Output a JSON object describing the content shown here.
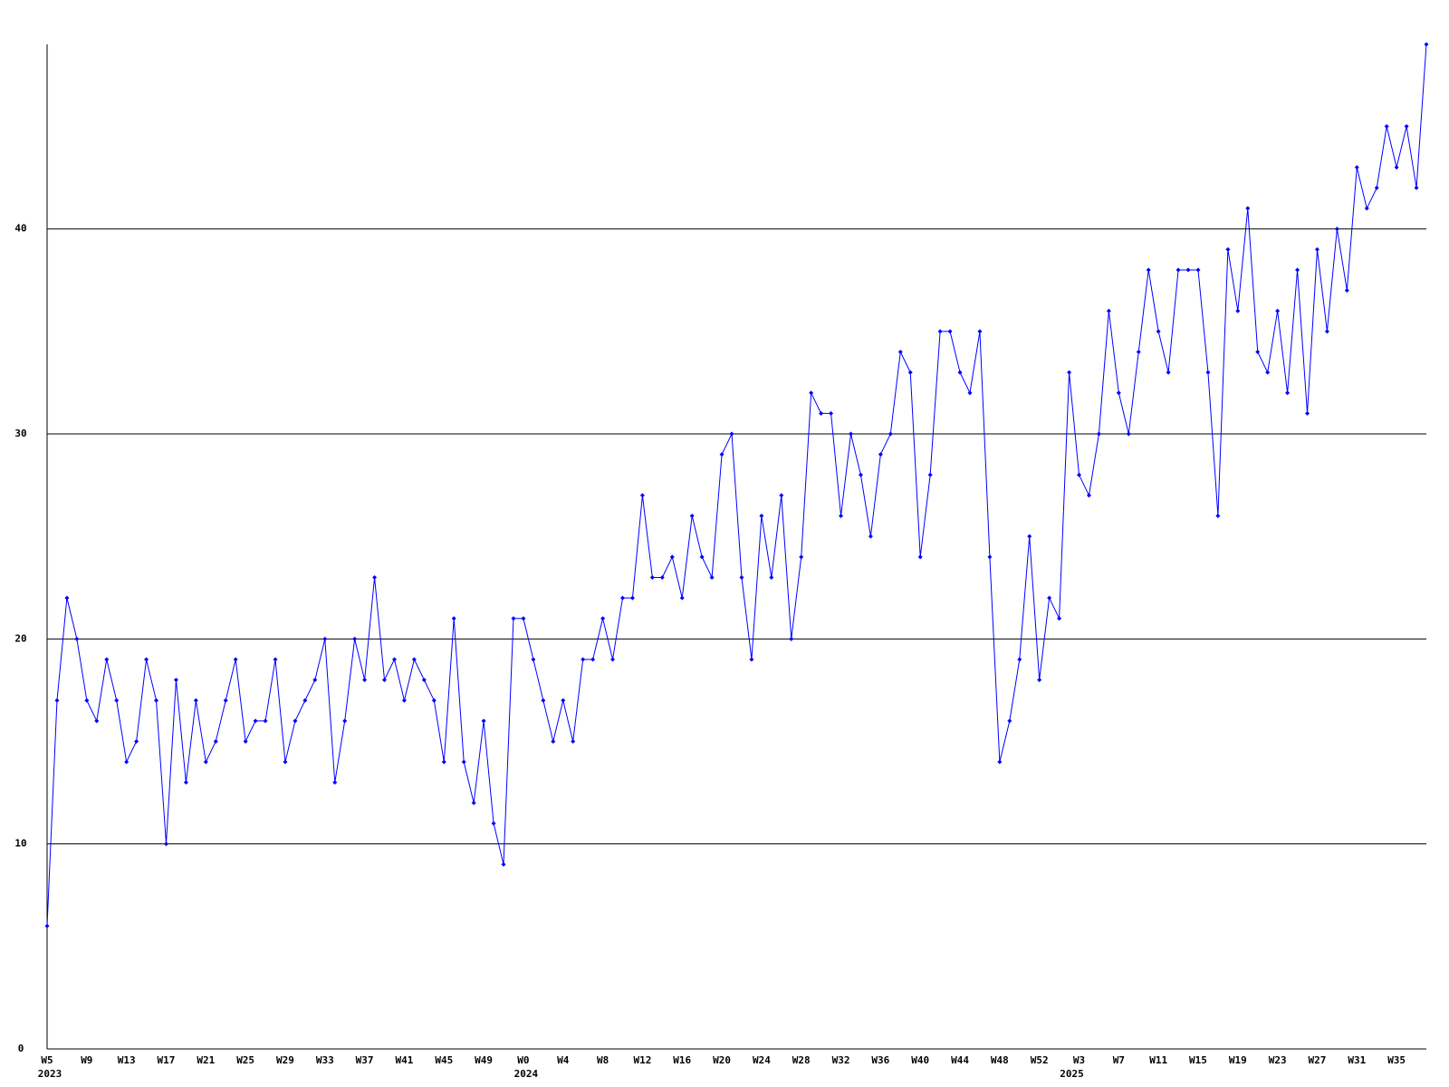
{
  "chart_data": {
    "type": "line",
    "color": "#0000ff",
    "grid": true,
    "ylim": [
      0,
      49
    ],
    "yticks": [
      0,
      10,
      20,
      30,
      40
    ],
    "categories": [
      "W5",
      null,
      null,
      null,
      "W9",
      null,
      null,
      null,
      "W13",
      null,
      null,
      null,
      "W17",
      null,
      null,
      null,
      "W21",
      null,
      null,
      null,
      "W25",
      null,
      null,
      null,
      "W29",
      null,
      null,
      null,
      "W33",
      null,
      null,
      null,
      "W37",
      null,
      null,
      null,
      "W41",
      null,
      null,
      null,
      "W45",
      null,
      null,
      null,
      "W49",
      null,
      null,
      null,
      "W0",
      null,
      null,
      null,
      "W4",
      null,
      null,
      null,
      "W8",
      null,
      null,
      null,
      "W12",
      null,
      null,
      null,
      "W16",
      null,
      null,
      null,
      "W20",
      null,
      null,
      null,
      "W24",
      null,
      null,
      null,
      "W28",
      null,
      null,
      null,
      "W32",
      null,
      null,
      null,
      "W36",
      null,
      null,
      null,
      "W40",
      null,
      null,
      null,
      "W44",
      null,
      null,
      null,
      "W48",
      null,
      null,
      null,
      "W52",
      null,
      null,
      null,
      "W3",
      null,
      null,
      null,
      "W7",
      null,
      null,
      null,
      "W11",
      null,
      null,
      null,
      "W15",
      null,
      null,
      null,
      "W19",
      null,
      null,
      null,
      "W23",
      null,
      null,
      null,
      "W27",
      null,
      null,
      null,
      "W31",
      null,
      null,
      null,
      "W35",
      null,
      null,
      null
    ],
    "category_years": [
      "2023",
      null,
      null,
      null,
      null,
      null,
      null,
      null,
      null,
      null,
      null,
      null,
      null,
      null,
      null,
      null,
      null,
      null,
      null,
      null,
      null,
      null,
      null,
      null,
      null,
      null,
      null,
      null,
      null,
      null,
      null,
      null,
      null,
      null,
      null,
      null,
      null,
      null,
      null,
      null,
      null,
      null,
      null,
      null,
      null,
      null,
      null,
      null,
      "2024",
      null,
      null,
      null,
      null,
      null,
      null,
      null,
      null,
      null,
      null,
      null,
      null,
      null,
      null,
      null,
      null,
      null,
      null,
      null,
      null,
      null,
      null,
      null,
      null,
      null,
      null,
      null,
      null,
      null,
      null,
      null,
      null,
      null,
      null,
      null,
      null,
      null,
      null,
      null,
      null,
      null,
      null,
      null,
      null,
      null,
      null,
      null,
      null,
      null,
      null,
      null,
      null,
      null,
      null,
      "2025",
      null,
      null,
      null,
      null,
      null,
      null,
      null,
      null,
      null,
      null,
      null,
      null,
      null,
      null,
      null,
      null,
      null,
      null,
      null,
      null,
      null,
      null,
      null,
      null,
      null,
      null,
      null,
      null,
      null,
      null,
      null,
      null,
      null,
      null,
      null,
      null,
      null,
      null
    ],
    "values": [
      6,
      17,
      22,
      20,
      17,
      16,
      19,
      17,
      14,
      15,
      19,
      17,
      10,
      18,
      13,
      17,
      14,
      15,
      17,
      19,
      15,
      16,
      16,
      19,
      14,
      16,
      17,
      18,
      20,
      13,
      16,
      20,
      18,
      23,
      18,
      19,
      17,
      19,
      18,
      17,
      14,
      21,
      14,
      12,
      16,
      11,
      9,
      21,
      21,
      19,
      17,
      15,
      17,
      15,
      19,
      19,
      21,
      19,
      22,
      22,
      27,
      23,
      23,
      24,
      22,
      26,
      24,
      23,
      29,
      30,
      23,
      19,
      26,
      23,
      27,
      20,
      24,
      32,
      31,
      31,
      26,
      30,
      28,
      25,
      29,
      30,
      34,
      33,
      24,
      28,
      35,
      35,
      33,
      32,
      35,
      24,
      14,
      16,
      19,
      25,
      18,
      22,
      21,
      33,
      28,
      27,
      30,
      36,
      32,
      30,
      34,
      38,
      35,
      33,
      38,
      38,
      38,
      33,
      26,
      39,
      36,
      41,
      34,
      33,
      36,
      32,
      38,
      31,
      39,
      35,
      40,
      37,
      43,
      41,
      42,
      45,
      43,
      45,
      42,
      49
    ]
  }
}
